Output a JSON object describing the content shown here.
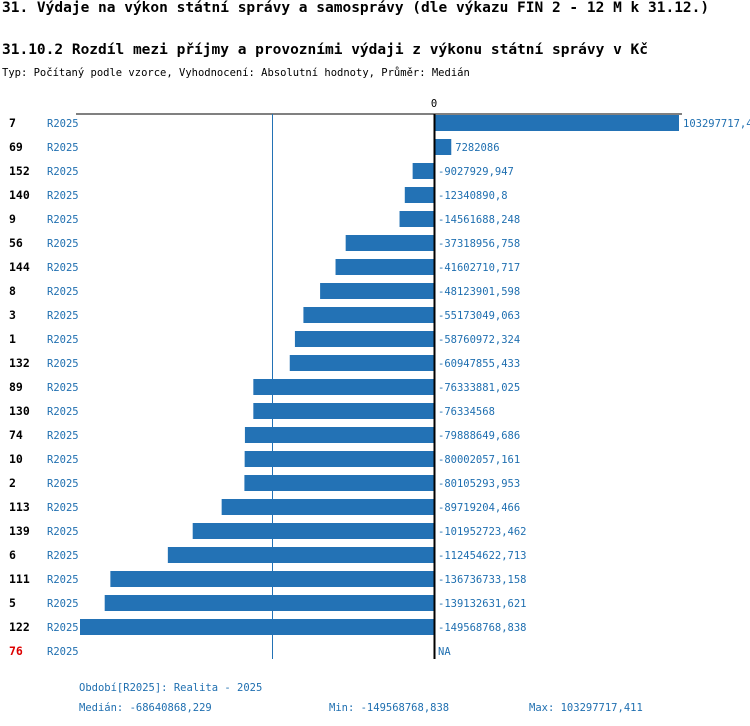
{
  "header": {
    "title": "31. Výdaje na výkon státní správy a samosprávy (dle výkazu FIN 2 - 12 M k 31.12.)",
    "subtitle": "31.10.2 Rozdíl mezi příjmy a provozními výdaji z výkonu státní správy v Kč",
    "type_line": "Typ: Počítaný podle vzorce, Vyhodnocení: Absolutní hodnoty, Průměr: Medián"
  },
  "colors": {
    "bar": "#2372b5",
    "label": "#1f6fb0",
    "highlight": "#dd0000",
    "axis": "#000000"
  },
  "chart_data": {
    "type": "bar",
    "orientation": "horizontal",
    "zero_label": "0",
    "median_value": -68640868.229,
    "categories": [
      "7",
      "69",
      "152",
      "140",
      "9",
      "56",
      "144",
      "8",
      "3",
      "1",
      "132",
      "89",
      "130",
      "74",
      "10",
      "2",
      "113",
      "139",
      "6",
      "111",
      "5",
      "122",
      "76"
    ],
    "period_labels": [
      "R2025",
      "R2025",
      "R2025",
      "R2025",
      "R2025",
      "R2025",
      "R2025",
      "R2025",
      "R2025",
      "R2025",
      "R2025",
      "R2025",
      "R2025",
      "R2025",
      "R2025",
      "R2025",
      "R2025",
      "R2025",
      "R2025",
      "R2025",
      "R2025",
      "R2025",
      "R2025"
    ],
    "values": [
      103297717.4,
      7282086,
      -9027929.947,
      -12340890.8,
      -14561688.248,
      -37318956.758,
      -41602710.717,
      -48123901.598,
      -55173049.063,
      -58760972.324,
      -60947855.433,
      -76333881.025,
      -76334568,
      -79888649.686,
      -80002057.161,
      -80105293.953,
      -89719204.466,
      -101952723.462,
      -112454622.713,
      -136736733.158,
      -139132631.621,
      -149568768.838,
      null
    ],
    "value_labels": [
      "103297717,4",
      "7282086",
      "-9027929,947",
      "-12340890,8",
      "-14561688,248",
      "-37318956,758",
      "-41602710,717",
      "-48123901,598",
      "-55173049,063",
      "-58760972,324",
      "-60947855,433",
      "-76333881,025",
      "-76334568",
      "-79888649,686",
      "-80002057,161",
      "-80105293,953",
      "-89719204,466",
      "-101952723,462",
      "-112454622,713",
      "-136736733,158",
      "-139132631,621",
      "-149568768,838",
      "NA"
    ],
    "highlight": [
      false,
      false,
      false,
      false,
      false,
      false,
      false,
      false,
      false,
      false,
      false,
      false,
      false,
      false,
      false,
      false,
      false,
      false,
      false,
      false,
      false,
      false,
      true
    ],
    "xlim": [
      -149568768.838,
      103297717.411
    ]
  },
  "footer": {
    "period": "Období[R2025]: Realita - 2025",
    "median": "Medián: -68640868,229",
    "min": "Min: -149568768,838",
    "max": "Max: 103297717,411"
  }
}
